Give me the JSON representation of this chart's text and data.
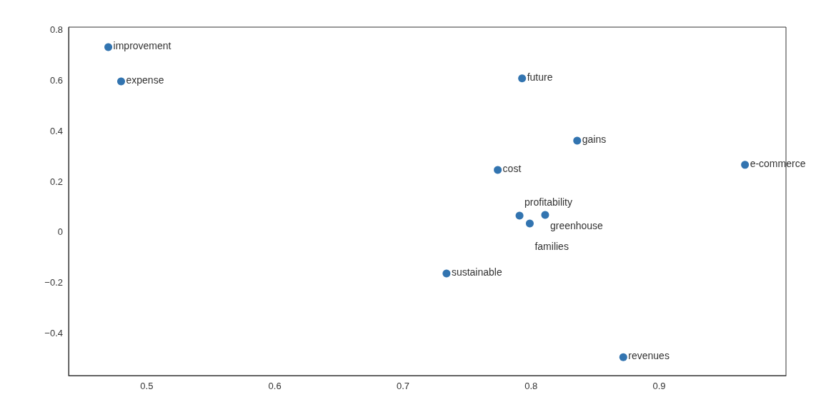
{
  "chart_data": {
    "type": "scatter",
    "x": [
      0.47,
      0.48,
      0.793,
      0.836,
      0.967,
      0.774,
      0.791,
      0.811,
      0.799,
      0.734,
      0.872
    ],
    "values": [
      0.732,
      0.596,
      0.608,
      0.362,
      0.266,
      0.246,
      0.065,
      0.068,
      0.034,
      -0.164,
      -0.495
    ],
    "color": "#3274b0",
    "marker": "circle",
    "xlim": [
      0.439,
      0.999
    ],
    "xticks": [
      0.5,
      0.6,
      0.7,
      0.8,
      0.9
    ],
    "ylim": [
      -0.568,
      0.811
    ],
    "yticks": [
      -0.4,
      -0.2,
      0.0,
      0.2,
      0.4,
      0.6,
      0.8
    ],
    "annotations": [
      {
        "text": "improvement",
        "x": 0.47,
        "y": 0.732
      },
      {
        "text": "expense",
        "x": 0.48,
        "y": 0.596
      },
      {
        "text": "future",
        "x": 0.793,
        "y": 0.608
      },
      {
        "text": "gains",
        "x": 0.836,
        "y": 0.362
      },
      {
        "text": "e-commerce",
        "x": 0.967,
        "y": 0.266
      },
      {
        "text": "cost",
        "x": 0.774,
        "y": 0.246
      },
      {
        "text": "profitability",
        "x": 0.791,
        "y": 0.065
      },
      {
        "text": "greenhouse",
        "x": 0.811,
        "y": 0.068
      },
      {
        "text": "families",
        "x": 0.799,
        "y": 0.034
      },
      {
        "text": "sustainable",
        "x": 0.734,
        "y": -0.164
      },
      {
        "text": "revenues",
        "x": 0.872,
        "y": -0.495
      }
    ]
  }
}
